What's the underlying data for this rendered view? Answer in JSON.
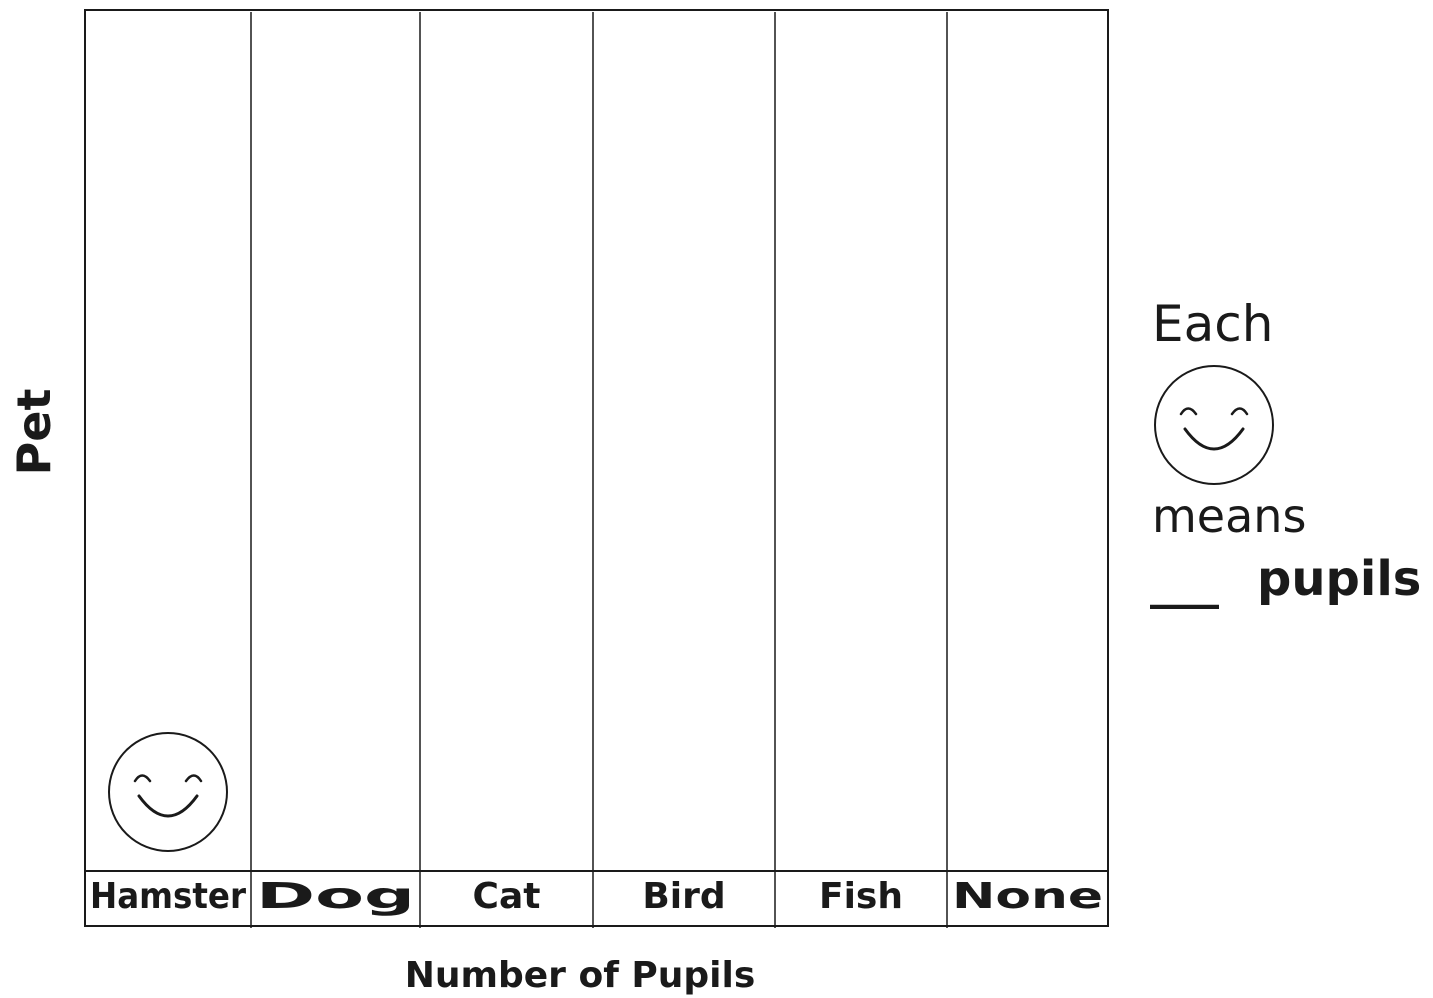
{
  "chart_data": {
    "type": "pictogram",
    "ylabel": "Pet",
    "xlabel": "Number of Pupils",
    "categories": [
      "Hamster",
      "Dog",
      "Cat",
      "Bird",
      "Fish",
      "None"
    ],
    "values": [
      1,
      0,
      0,
      0,
      0,
      0
    ],
    "symbol": "smiley-face-icon"
  },
  "key": {
    "line1": "Each",
    "symbol": "smiley-face-icon",
    "line2": "means",
    "blank": "___",
    "unit": "pupils"
  },
  "colors": {
    "ink": "#1a1a1a",
    "background": "#ffffff"
  }
}
